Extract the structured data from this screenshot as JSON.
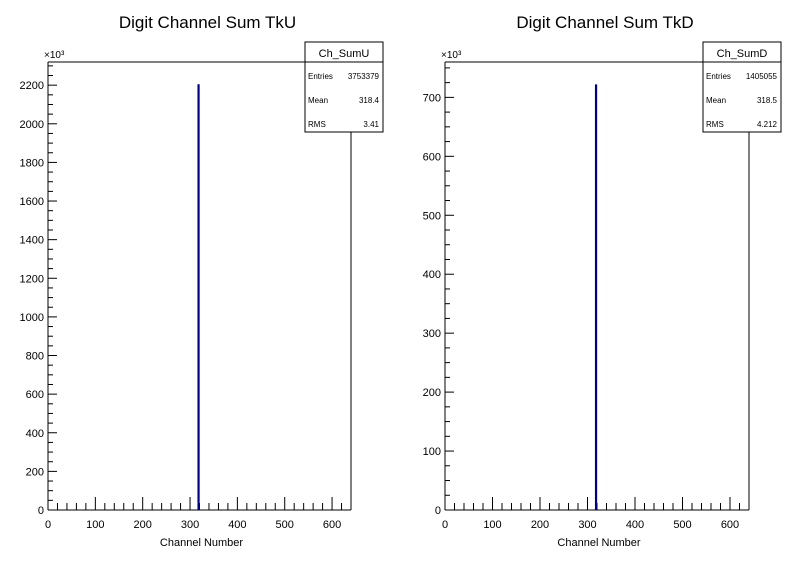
{
  "chart_data": [
    {
      "type": "bar",
      "title": "Digit Channel Sum TkU",
      "xlabel": "Channel Number",
      "ylabel": "",
      "xlim": [
        0,
        640
      ],
      "ylim": [
        0,
        2320
      ],
      "y_multiplier": "×10³",
      "x_ticks": [
        "0",
        "100",
        "200",
        "300",
        "400",
        "500",
        "600"
      ],
      "y_ticks": [
        "0",
        "200",
        "400",
        "600",
        "800",
        "1000",
        "1200",
        "1400",
        "1600",
        "1800",
        "2000",
        "2200"
      ],
      "color": "#000080",
      "points": [
        {
          "x": 318,
          "y": 2205
        }
      ],
      "stats": {
        "name": "Ch_SumU",
        "rows": [
          {
            "label": "Entries",
            "value": "3753379"
          },
          {
            "label": "Mean",
            "value": "318.4"
          },
          {
            "label": "RMS",
            "value": "3.41"
          }
        ]
      }
    },
    {
      "type": "bar",
      "title": "Digit Channel Sum TkD",
      "xlabel": "Channel Number",
      "ylabel": "",
      "xlim": [
        0,
        640
      ],
      "ylim": [
        0,
        760
      ],
      "y_multiplier": "×10³",
      "x_ticks": [
        "0",
        "100",
        "200",
        "300",
        "400",
        "500",
        "600"
      ],
      "y_ticks": [
        "0",
        "100",
        "200",
        "300",
        "400",
        "500",
        "600",
        "700"
      ],
      "color": "#000080",
      "points": [
        {
          "x": 318,
          "y": 722
        }
      ],
      "stats": {
        "name": "Ch_SumD",
        "rows": [
          {
            "label": "Entries",
            "value": "1405055"
          },
          {
            "label": "Mean",
            "value": "318.5"
          },
          {
            "label": "RMS",
            "value": "4.212"
          }
        ]
      }
    }
  ]
}
